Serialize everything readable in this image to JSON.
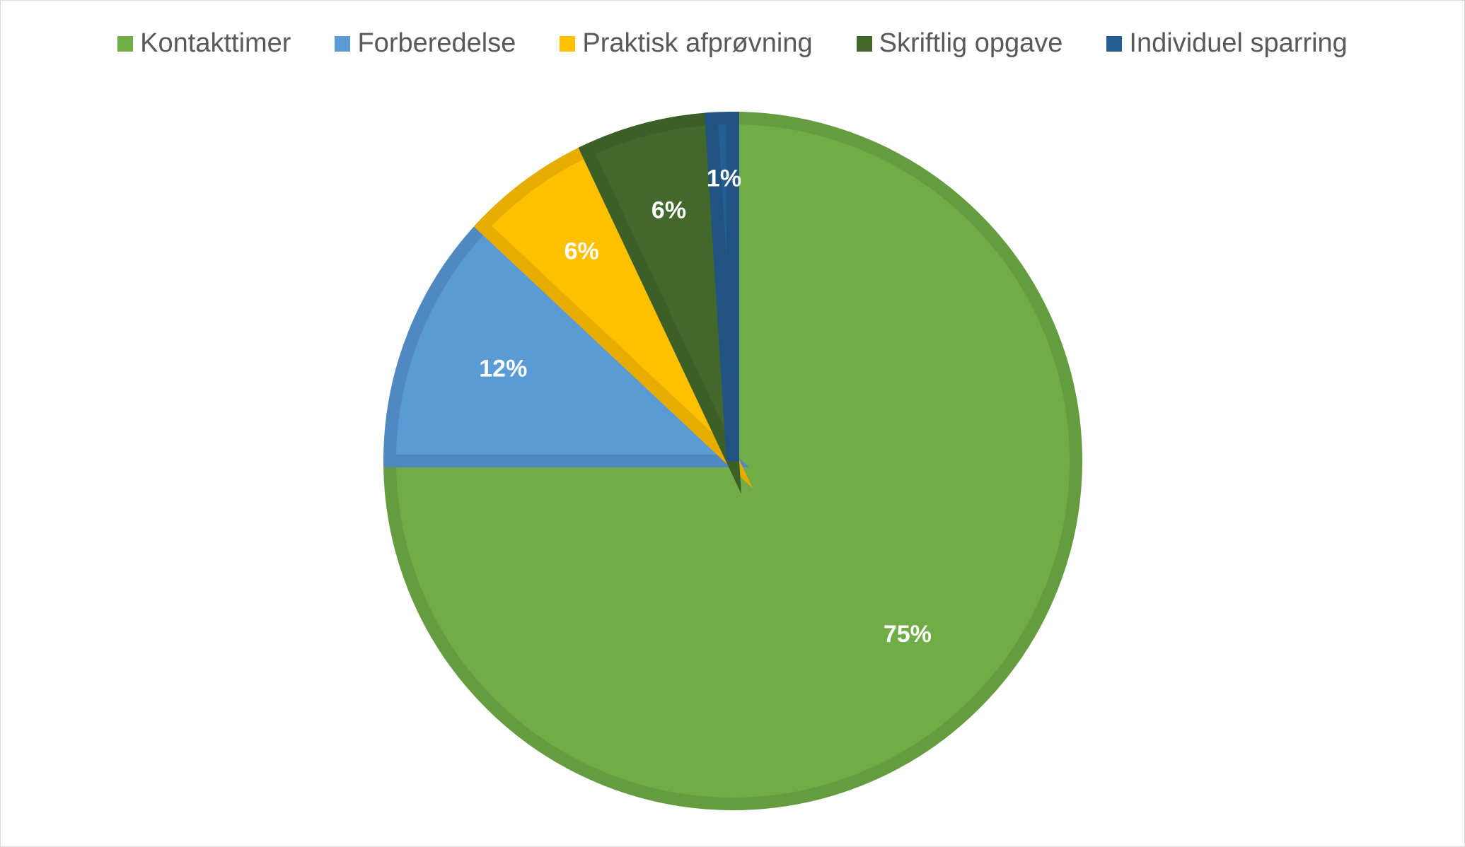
{
  "chart_data": {
    "type": "pie",
    "categories": [
      "Kontakttimer",
      "Forberedelse",
      "Praktisk afprøvning",
      "Skriftlig opgave",
      "Individuel sparring"
    ],
    "values": [
      75,
      12,
      6,
      6,
      1
    ],
    "data_labels": [
      "75%",
      "12%",
      "6%",
      "6%",
      "1%"
    ],
    "colors": [
      "#70AD47",
      "#5B9BD5",
      "#FFC000",
      "#43682B",
      "#255E91"
    ],
    "border_colors": [
      "#659C40",
      "#5089C0",
      "#E6AD00",
      "#3C5E27",
      "#215483"
    ],
    "legend_position": "top",
    "label_color": "#FFFFFF"
  }
}
